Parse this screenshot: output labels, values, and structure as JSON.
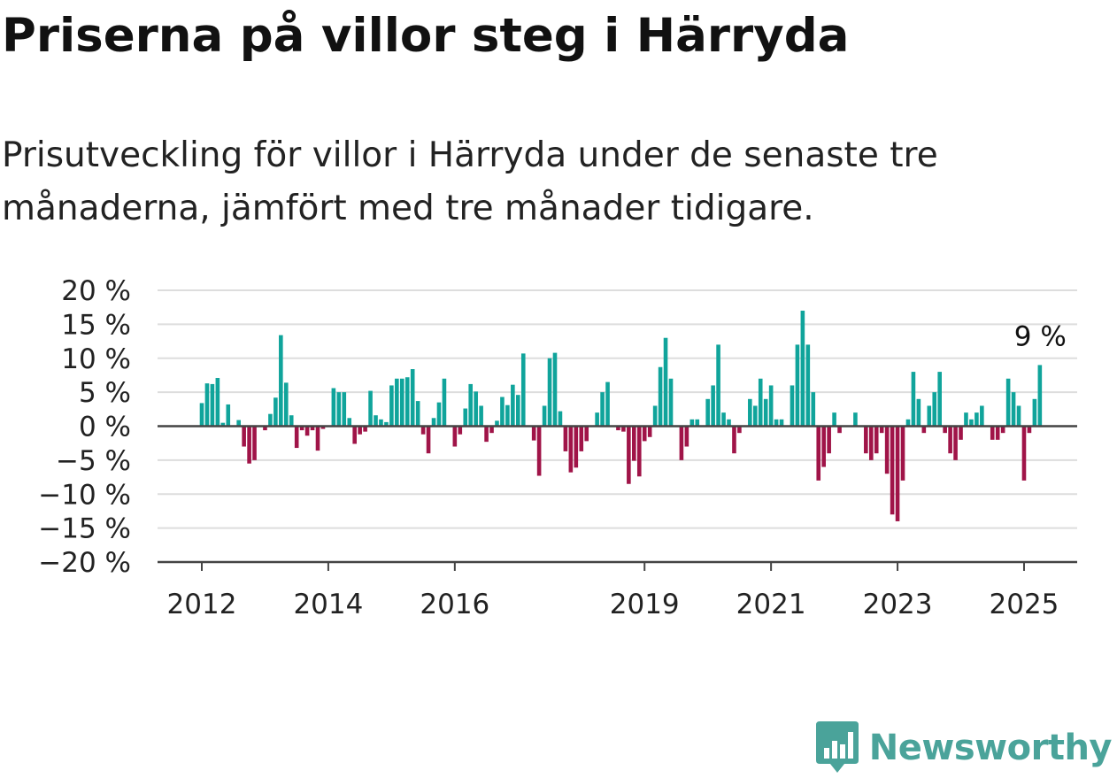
{
  "title": "Priserna på villor steg i Härryda",
  "subtitle": "Prisutveckling för villor i Härryda under de senaste tre månaderna, jämfört med tre månader tidigare.",
  "brand": {
    "name": "Newsworthy",
    "color": "#4aa39a"
  },
  "colors": {
    "positive": "#10a49b",
    "negative": "#a01448",
    "grid": "#dddddd",
    "axis": "#444444",
    "text": "#222222"
  },
  "chart_data": {
    "type": "bar",
    "title": "Priserna på villor steg i Härryda",
    "ylim": [
      -20,
      20
    ],
    "y_ticks": [
      20,
      15,
      10,
      5,
      0,
      -5,
      -10,
      -15,
      -20
    ],
    "y_tick_labels": [
      "20 %",
      "15 %",
      "10 %",
      "5 %",
      "0 %",
      "−5 %",
      "−10 %",
      "−15 %",
      "−20 %"
    ],
    "x_tick_labels": [
      {
        "label": "2012",
        "index": 0
      },
      {
        "label": "2014",
        "index": 24
      },
      {
        "label": "2016",
        "index": 48
      },
      {
        "label": "2019",
        "index": 84
      },
      {
        "label": "2021",
        "index": 108
      },
      {
        "label": "2023",
        "index": 132
      },
      {
        "label": "2025",
        "index": 156
      }
    ],
    "start": "2012-01",
    "frequency": "monthly",
    "values": [
      3.4,
      6.3,
      6.2,
      7.1,
      0.5,
      3.2,
      0,
      0.9,
      -3,
      -5.5,
      -5,
      0,
      -0.6,
      1.8,
      4.2,
      13.4,
      6.4,
      1.6,
      -3.2,
      -0.6,
      -1.4,
      -0.6,
      -3.6,
      -0.4,
      0,
      5.6,
      5,
      5,
      1.2,
      -2.6,
      -1.2,
      -0.8,
      5.2,
      1.6,
      1,
      0.6,
      6,
      7,
      7,
      7.2,
      8.4,
      3.7,
      -1.2,
      -4,
      1.2,
      3.5,
      7,
      0,
      -3,
      -1.2,
      2.6,
      6.2,
      5.1,
      3,
      -2.3,
      -1,
      0.8,
      4.3,
      3.1,
      6.1,
      4.6,
      10.7,
      0,
      -2.1,
      -7.3,
      3,
      10,
      10.8,
      2.2,
      -3.7,
      -6.8,
      -6.1,
      -3.7,
      -2.2,
      0,
      2,
      5,
      6.5,
      0,
      -0.6,
      -0.8,
      -8.5,
      -5.1,
      -7.4,
      -2.2,
      -1.6,
      3,
      8.7,
      13,
      7,
      0,
      -5,
      -3,
      1,
      1,
      0,
      4,
      6,
      12,
      2,
      1,
      -4,
      -1,
      0,
      4,
      3,
      7,
      4,
      6,
      1,
      1,
      0,
      6,
      12,
      17,
      12,
      5,
      -8,
      -6,
      -4,
      2,
      -1,
      0,
      0,
      2,
      0,
      -4,
      -5,
      -4,
      -1,
      -7,
      -13,
      -14,
      -8,
      1,
      8,
      4,
      -1,
      3,
      5,
      8,
      -1,
      -4,
      -5,
      -2,
      2,
      1,
      2,
      3,
      0,
      -2,
      -2,
      -1,
      7,
      5,
      3,
      -8,
      -1,
      4,
      9
    ],
    "last_value_label": "9 %"
  }
}
